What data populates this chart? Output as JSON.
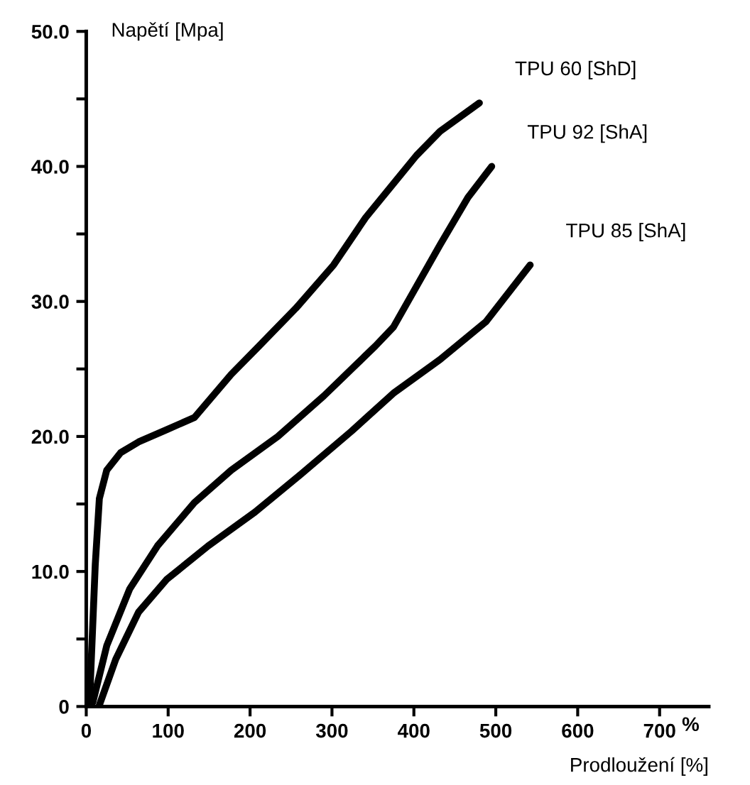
{
  "chart_data": {
    "type": "line",
    "xlabel": "Prodloužení [%]",
    "ylabel": "Napětí [Mpa]",
    "xlim": [
      0,
      760
    ],
    "ylim": [
      0,
      50
    ],
    "xticks": [
      0,
      100,
      200,
      300,
      400,
      500,
      600,
      700
    ],
    "yticks": [
      0,
      {
        "value": 5,
        "label": null
      },
      {
        "value": 10,
        "label": "10.0"
      },
      {
        "value": 15,
        "label": null
      },
      {
        "value": 20,
        "label": "20.0"
      },
      {
        "value": 25,
        "label": null
      },
      {
        "value": 30,
        "label": "30.0"
      },
      {
        "value": 35,
        "label": null
      },
      {
        "value": 40,
        "label": "40.0"
      },
      {
        "value": 45,
        "label": null
      },
      {
        "value": 50,
        "label": "50.0"
      }
    ],
    "grid": false,
    "legend": false,
    "marker": "none",
    "line_style": "solid",
    "annotations": [
      "%"
    ],
    "series": [
      {
        "name": "TPU 60 [ShD]",
        "color": "#000000",
        "x": [
          4,
          11,
          16,
          25,
          42,
          64,
          98,
          132,
          177,
          211,
          256,
          302,
          341,
          403,
          432,
          480
        ],
        "values": [
          0.3,
          10.5,
          15.4,
          17.5,
          18.8,
          19.6,
          20.5,
          21.4,
          24.6,
          26.7,
          29.5,
          32.7,
          36.2,
          40.8,
          42.6,
          44.7
        ]
      },
      {
        "name": "TPU 92 [ShA]",
        "color": "#000000",
        "x": [
          8,
          25,
          53,
          87,
          132,
          177,
          234,
          290,
          353,
          375,
          432,
          466,
          495
        ],
        "values": [
          0.3,
          4.5,
          8.7,
          11.9,
          15.1,
          17.5,
          20.0,
          23.0,
          26.7,
          28.1,
          34.2,
          37.7,
          40.0
        ]
      },
      {
        "name": "TPU 85 [ShA]",
        "color": "#000000",
        "x": [
          16,
          36,
          64,
          98,
          149,
          206,
          262,
          324,
          375,
          432,
          488,
          542
        ],
        "values": [
          0.1,
          3.5,
          7.0,
          9.4,
          11.9,
          14.4,
          17.2,
          20.4,
          23.2,
          25.7,
          28.5,
          32.7
        ]
      }
    ]
  }
}
